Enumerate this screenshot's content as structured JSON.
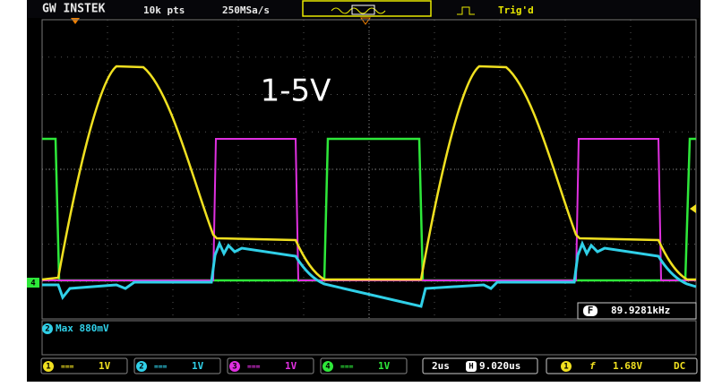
{
  "header": {
    "brand": "GW INSTEK",
    "record_length": "10k pts",
    "sample_rate": "250MSa/s",
    "trigger_status": "Trig'd"
  },
  "annotation": "1-5V",
  "ground_marker": "4",
  "frequency_readout": {
    "icon": "F",
    "value": "89.9281kHz"
  },
  "measurement": {
    "channel": "2",
    "text": "Max 880mV"
  },
  "channels": [
    {
      "number": "1",
      "coupling": "===",
      "scale": "1V"
    },
    {
      "number": "2",
      "coupling": "===",
      "scale": "1V"
    },
    {
      "number": "3",
      "coupling": "===",
      "scale": "1V"
    },
    {
      "number": "4",
      "coupling": "===",
      "scale": "1V"
    }
  ],
  "timebase": {
    "scale": "2us",
    "position_icon": "H",
    "position": "9.020us"
  },
  "trigger": {
    "source": "1",
    "slope": "f",
    "level": "1.68V",
    "coupling": "DC"
  }
}
